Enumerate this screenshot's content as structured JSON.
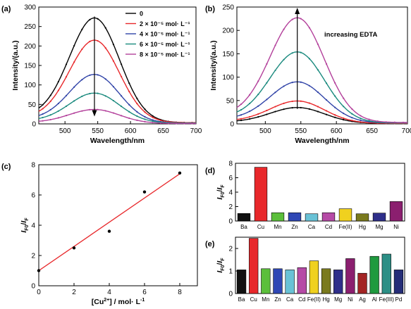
{
  "figure": {
    "panel_labels": [
      "(a)",
      "(b)",
      "(c)",
      "(d)",
      "(e)"
    ]
  },
  "chart_data": [
    {
      "panel": "(a)",
      "type": "line",
      "xlabel": "Wavelength/nm",
      "ylabel": "Intensity/(a.u.)",
      "xlim": [
        460,
        700
      ],
      "ylim": [
        0,
        300
      ],
      "xticks": [
        500,
        550,
        600,
        650,
        700
      ],
      "yticks": [
        0,
        50,
        100,
        150,
        200,
        250,
        300
      ],
      "peak_x": 545,
      "grid": false,
      "legend_position": "top-right",
      "series": [
        {
          "name": "0",
          "color": "#000000",
          "peak": 272,
          "start": 20,
          "end": 3
        },
        {
          "name": "2 × 10⁻⁵ mol· L⁻¹",
          "color": "#e8282b",
          "peak": 215,
          "start": 16,
          "end": 3
        },
        {
          "name": "4 × 10⁻⁵ mol· L⁻¹",
          "color": "#3144a8",
          "peak": 127,
          "start": 12,
          "end": 2
        },
        {
          "name": "6 × 10⁻⁵ mol· L⁻¹",
          "color": "#1a8a7e",
          "peak": 79,
          "start": 8,
          "end": 2
        },
        {
          "name": "8 × 10⁻⁵ mol· L⁻¹",
          "color": "#b3409b",
          "peak": 37,
          "start": 4,
          "end": 1
        }
      ]
    },
    {
      "panel": "(b)",
      "type": "line",
      "xlabel": "Wavelength/nm",
      "ylabel": "Intensity/(a.u.)",
      "xlim": [
        460,
        700
      ],
      "ylim": [
        0,
        250
      ],
      "xticks": [
        500,
        550,
        600,
        650,
        700
      ],
      "yticks": [
        0,
        50,
        100,
        150,
        200,
        250
      ],
      "peak_x": 545,
      "grid": false,
      "annotation": "increasing EDTA",
      "series": [
        {
          "color": "#000000",
          "peak": 35,
          "start": 4,
          "end": 1
        },
        {
          "color": "#e8282b",
          "peak": 49,
          "start": 6,
          "end": 1
        },
        {
          "color": "#3144a8",
          "peak": 90,
          "start": 10,
          "end": 2
        },
        {
          "color": "#1a8a7e",
          "peak": 154,
          "start": 14,
          "end": 2
        },
        {
          "color": "#b3409b",
          "peak": 227,
          "start": 18,
          "end": 3
        }
      ]
    },
    {
      "panel": "(c)",
      "type": "scatter",
      "xlabel": "[Cu²⁺] / mol· L⁻¹",
      "ylabel": "IF0/IF",
      "xlim": [
        0,
        9
      ],
      "ylim": [
        0,
        8
      ],
      "xticks": [
        0,
        2,
        4,
        6,
        8
      ],
      "yticks": [
        0,
        2,
        4,
        6,
        8
      ],
      "grid": false,
      "x": [
        0,
        2,
        4,
        6,
        8
      ],
      "y": [
        1.0,
        2.5,
        3.6,
        6.2,
        7.45
      ],
      "fit_line": {
        "x": [
          0,
          8
        ],
        "y": [
          1.0,
          7.4
        ],
        "color": "#e8282b"
      }
    },
    {
      "panel": "(d)",
      "type": "bar",
      "ylabel": "IF0/IF",
      "ylim": [
        0,
        8
      ],
      "yticks": [
        0,
        2,
        4,
        6,
        8
      ],
      "grid": false,
      "categories": [
        "Ba",
        "Cu",
        "Mn",
        "Zn",
        "Ca",
        "Cd",
        "Fe(II)",
        "Hg",
        "Mg",
        "Ni"
      ],
      "values": [
        1.05,
        7.45,
        1.15,
        1.15,
        1.0,
        1.15,
        1.7,
        1.0,
        1.1,
        2.7
      ],
      "colors": [
        "#111111",
        "#e8282b",
        "#5bbf3b",
        "#2f47b5",
        "#69c2d6",
        "#b64aa6",
        "#f0d11f",
        "#7a7a1e",
        "#2f2f8a",
        "#8b1f6f"
      ]
    },
    {
      "panel": "(e)",
      "type": "bar",
      "ylabel": "IF0/IF",
      "ylim": [
        0,
        2.5
      ],
      "yticks": [
        0,
        1,
        2
      ],
      "grid": false,
      "categories": [
        "Ba",
        "Cu",
        "Mn",
        "Zn",
        "Ca",
        "Cd",
        "Fe(II)",
        "Hg",
        "Mg",
        "Ni",
        "Ag",
        "Al",
        "Fe(III)",
        "Pd"
      ],
      "values": [
        1.05,
        2.45,
        1.1,
        1.1,
        1.05,
        1.15,
        1.45,
        1.1,
        1.05,
        1.55,
        0.9,
        1.65,
        1.75,
        1.05
      ],
      "colors": [
        "#111111",
        "#e8282b",
        "#5bbf3b",
        "#2f47b5",
        "#69c2d6",
        "#b64aa6",
        "#f0d11f",
        "#7a7a1e",
        "#2f2f8a",
        "#8b1f6f",
        "#a32424",
        "#1f9a3f",
        "#2c8f86",
        "#252d78"
      ]
    }
  ]
}
